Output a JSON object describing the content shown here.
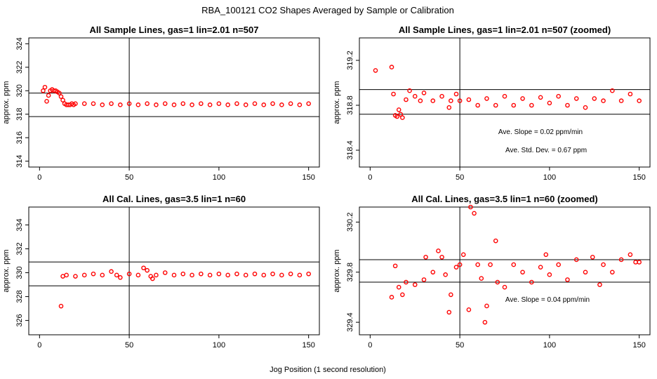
{
  "figure": {
    "title": "RBA_100121  CO2 Shapes Averaged by Sample or Calibration",
    "xlabel": "Jog Position (1 second resolution)"
  },
  "chart_data": [
    {
      "type": "scatter",
      "title": "All Sample Lines, gas=1 lin=2.01 n=507",
      "xlabel": "",
      "ylabel": "approx. ppm",
      "xlim": [
        -6,
        156
      ],
      "ylim": [
        313.5,
        324.5
      ],
      "xticks": [
        0,
        50,
        100,
        150
      ],
      "yticks": [
        314,
        316,
        318,
        320,
        322,
        324
      ],
      "vline": 50,
      "hlines": [
        319.8,
        317.8
      ],
      "annotations": [],
      "marker_color": "#ff0000",
      "series": [
        {
          "x": [
            2,
            3,
            4,
            5,
            6,
            7,
            8,
            9,
            10,
            11,
            12,
            13,
            14,
            15,
            16,
            17,
            18,
            19,
            20,
            25,
            30,
            35,
            40,
            45,
            50,
            55,
            60,
            65,
            70,
            75,
            80,
            85,
            90,
            95,
            100,
            105,
            110,
            115,
            120,
            125,
            130,
            135,
            140,
            145,
            150
          ],
          "y": [
            320.0,
            320.3,
            319.1,
            319.6,
            320.0,
            320.1,
            320.0,
            320.0,
            319.9,
            319.8,
            319.5,
            319.2,
            318.9,
            318.8,
            318.8,
            318.8,
            318.9,
            318.8,
            318.9,
            318.9,
            318.9,
            318.8,
            318.9,
            318.8,
            318.9,
            318.8,
            318.9,
            318.8,
            318.9,
            318.8,
            318.9,
            318.8,
            318.9,
            318.8,
            318.9,
            318.8,
            318.9,
            318.8,
            318.9,
            318.8,
            318.9,
            318.8,
            318.9,
            318.8,
            318.9
          ]
        }
      ]
    },
    {
      "type": "scatter",
      "title": "All Sample Lines, gas=1 lin=2.01 n=507 (zoomed)",
      "xlabel": "",
      "ylabel": "approx. ppm",
      "xlim": [
        -6,
        156
      ],
      "ylim": [
        318.25,
        319.4
      ],
      "xticks": [
        0,
        50,
        100,
        150
      ],
      "yticks": [
        318.4,
        318.8,
        319.2
      ],
      "vline": 50,
      "hlines": [
        318.94,
        318.72
      ],
      "annotations": [
        "Ave. Slope =  0.02  ppm/min",
        "Ave. Std. Dev. =  0.67  ppm"
      ],
      "marker_color": "#ff0000",
      "series": [
        {
          "x": [
            3,
            12,
            13,
            14,
            15,
            16,
            17,
            18,
            20,
            22,
            25,
            28,
            30,
            35,
            40,
            44,
            45,
            48,
            50,
            55,
            60,
            65,
            70,
            75,
            80,
            85,
            90,
            95,
            100,
            105,
            110,
            115,
            120,
            125,
            130,
            135,
            140,
            145,
            150
          ],
          "y": [
            319.11,
            319.14,
            318.9,
            318.71,
            318.7,
            318.76,
            318.72,
            318.69,
            318.85,
            318.93,
            318.88,
            318.84,
            318.91,
            318.84,
            318.88,
            318.78,
            318.84,
            318.9,
            318.84,
            318.85,
            318.8,
            318.86,
            318.8,
            318.88,
            318.8,
            318.86,
            318.8,
            318.87,
            318.82,
            318.88,
            318.8,
            318.86,
            318.78,
            318.86,
            318.84,
            318.93,
            318.84,
            318.9,
            318.84
          ]
        }
      ]
    },
    {
      "type": "scatter",
      "title": "All Cal. Lines, gas=3.5 lin=1 n=60",
      "xlabel": "",
      "ylabel": "approx. ppm",
      "xlim": [
        -6,
        156
      ],
      "ylim": [
        324.8,
        335.5
      ],
      "xticks": [
        0,
        50,
        100,
        150
      ],
      "yticks": [
        326,
        328,
        330,
        332,
        334
      ],
      "vline": 50,
      "hlines": [
        330.9,
        328.9
      ],
      "annotations": [],
      "marker_color": "#ff0000",
      "series": [
        {
          "x": [
            12,
            13,
            15,
            20,
            25,
            30,
            35,
            40,
            43,
            45,
            50,
            55,
            58,
            60,
            62,
            63,
            65,
            70,
            75,
            80,
            85,
            90,
            95,
            100,
            105,
            110,
            115,
            120,
            125,
            130,
            135,
            140,
            145,
            150
          ],
          "y": [
            327.2,
            329.7,
            329.8,
            329.7,
            329.8,
            329.9,
            329.8,
            330.1,
            329.8,
            329.6,
            329.9,
            329.8,
            330.4,
            330.2,
            329.7,
            329.5,
            329.8,
            330.0,
            329.8,
            329.9,
            329.8,
            329.9,
            329.8,
            329.9,
            329.8,
            329.9,
            329.8,
            329.9,
            329.8,
            329.9,
            329.8,
            329.9,
            329.8,
            329.9
          ]
        }
      ]
    },
    {
      "type": "scatter",
      "title": "All Cal. Lines, gas=3.5 lin=1 n=60 (zoomed)",
      "xlabel": "",
      "ylabel": "approx. ppm",
      "xlim": [
        -6,
        156
      ],
      "ylim": [
        329.3,
        330.32
      ],
      "xticks": [
        0,
        50,
        100,
        150
      ],
      "yticks": [
        329.4,
        329.8,
        330.2
      ],
      "vline": 50,
      "hlines": [
        329.9,
        329.72
      ],
      "annotations": [
        "Ave. Slope =  0.04  ppm/min"
      ],
      "marker_color": "#ff0000",
      "series": [
        {
          "x": [
            12,
            14,
            16,
            18,
            20,
            25,
            30,
            31,
            35,
            38,
            40,
            42,
            44,
            45,
            48,
            50,
            52,
            55,
            56,
            58,
            60,
            62,
            64,
            65,
            67,
            70,
            71,
            75,
            80,
            85,
            90,
            95,
            98,
            100,
            105,
            110,
            115,
            120,
            124,
            128,
            130,
            135,
            140,
            145,
            148,
            150
          ],
          "y": [
            329.6,
            329.85,
            329.68,
            329.62,
            329.72,
            329.7,
            329.74,
            329.92,
            329.8,
            329.97,
            329.92,
            329.78,
            329.48,
            329.62,
            329.84,
            329.86,
            329.94,
            329.5,
            330.33,
            330.27,
            329.86,
            329.75,
            329.4,
            329.53,
            329.86,
            330.05,
            329.72,
            329.68,
            329.86,
            329.8,
            329.72,
            329.84,
            329.94,
            329.78,
            329.86,
            329.74,
            329.9,
            329.8,
            329.92,
            329.7,
            329.86,
            329.8,
            329.9,
            329.94,
            329.88,
            329.88
          ]
        }
      ]
    }
  ]
}
